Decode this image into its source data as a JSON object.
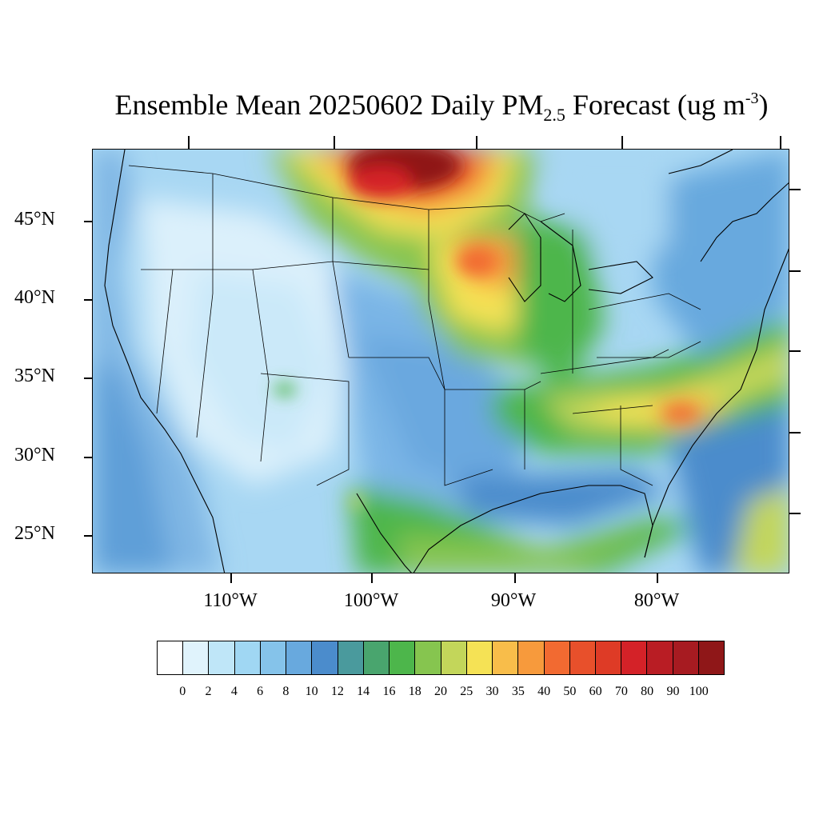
{
  "title": {
    "prefix": "Ensemble Mean 20250602 Daily PM",
    "subscript": "2.5",
    "middle": " Forecast (ug m",
    "superscript": "-3",
    "suffix": ")"
  },
  "map": {
    "region": "Contiguous United States",
    "lat_labels": [
      "45°N",
      "40°N",
      "35°N",
      "30°N",
      "25°N"
    ],
    "lon_labels": [
      "110°W",
      "100°W",
      "90°W",
      "80°W"
    ]
  },
  "colorbar": {
    "labels": [
      "0",
      "2",
      "4",
      "6",
      "8",
      "10",
      "12",
      "14",
      "16",
      "18",
      "20",
      "25",
      "30",
      "35",
      "40",
      "50",
      "60",
      "70",
      "80",
      "90",
      "100"
    ],
    "colors": [
      "#ffffff",
      "#e0f3fc",
      "#bfe6f8",
      "#a0d7f3",
      "#85c3ea",
      "#68a9de",
      "#4b8ccc",
      "#4a9a9d",
      "#49a56e",
      "#4db64b",
      "#86c54f",
      "#c3d65a",
      "#f5e255",
      "#f8bd4a",
      "#f79a3c",
      "#f26a31",
      "#e8502b",
      "#de3b26",
      "#d42228",
      "#b91d24",
      "#a71b21",
      "#8f1718"
    ]
  }
}
